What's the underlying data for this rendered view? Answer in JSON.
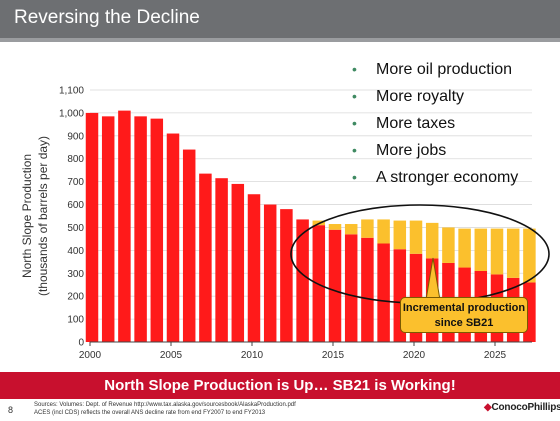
{
  "slide": {
    "title": "Reversing the Decline",
    "page_number": "8",
    "banner": "North Slope Production is Up… SB21 is Working!",
    "sources_line1": "Sources: Volumes:  Dept. of Revenue  http://www.tax.alaska.gov/sourcesbook/AlaskaProduction.pdf",
    "sources_line2": "ACES (incl CDS) reflects the overall ANS decline rate from end FY2007 to end FY2013",
    "logo_text": "ConocoPhillips"
  },
  "bullets": [
    "More oil production",
    "More royalty",
    "More taxes",
    "More jobs",
    "A stronger economy"
  ],
  "callout": {
    "line1": "Incremental production",
    "line2": "since SB21"
  },
  "colors": {
    "red_series": "#ff1a1a",
    "yellow_series": "#fbc02d",
    "banner": "#c8102e",
    "title_bar": "#6d6f72",
    "bullet_dot": "#3f8a62"
  },
  "chart_data": {
    "type": "bar",
    "ylabel_line1": "North Slope Production",
    "ylabel_line2": "(thousands of barrels per day)",
    "ylim": [
      0,
      1100
    ],
    "yticks": [
      "0",
      "100",
      "200",
      "300",
      "400",
      "500",
      "600",
      "700",
      "800",
      "900",
      "1,000",
      "1,100"
    ],
    "xticks": [
      "2000",
      "2005",
      "2010",
      "2015",
      "2020",
      "2025"
    ],
    "grid": true,
    "stacked": true,
    "categories": [
      "2000",
      "2001",
      "2002",
      "2003",
      "2004",
      "2005",
      "2006",
      "2007",
      "2008",
      "2009",
      "2010",
      "2011",
      "2012",
      "2013",
      "2014",
      "2015",
      "2016",
      "2017",
      "2018",
      "2019",
      "2020",
      "2021",
      "2022",
      "2023",
      "2024",
      "2025",
      "2026",
      "2027"
    ],
    "series": [
      {
        "name": "",
        "color": "#ff1a1a",
        "values": [
          1000,
          985,
          1010,
          985,
          975,
          910,
          840,
          735,
          715,
          690,
          645,
          600,
          580,
          535,
          510,
          490,
          470,
          455,
          430,
          405,
          385,
          365,
          345,
          325,
          310,
          295,
          280,
          260
        ]
      },
      {
        "name": "",
        "color": "#fbc02d",
        "values": [
          0,
          0,
          0,
          0,
          0,
          0,
          0,
          0,
          0,
          0,
          0,
          0,
          0,
          0,
          20,
          25,
          45,
          80,
          105,
          125,
          145,
          155,
          155,
          170,
          185,
          200,
          215,
          235
        ]
      }
    ]
  }
}
